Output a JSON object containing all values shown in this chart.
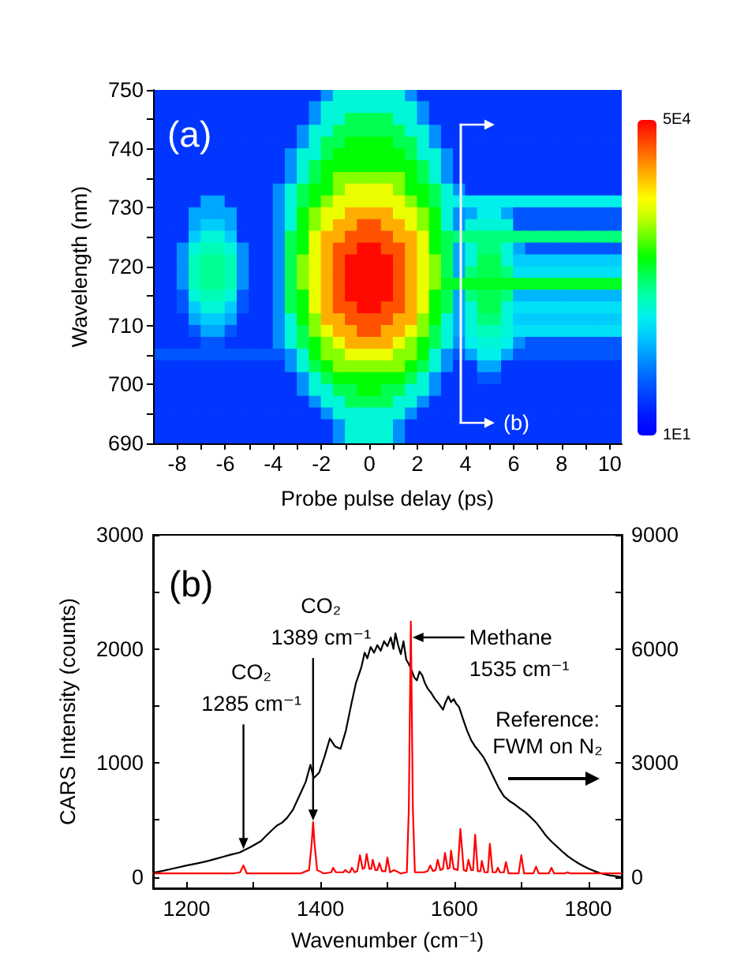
{
  "chart_data": [
    {
      "type": "heatmap",
      "xlabel": "Probe pulse delay (ps)",
      "ylabel": "Wavelength (nm)",
      "x": [
        -8.75,
        -8.25,
        -7.75,
        -7.25,
        -6.75,
        -6.25,
        -5.75,
        -5.25,
        -4.75,
        -4.25,
        -3.75,
        -3.25,
        -2.75,
        -2.25,
        -1.75,
        -1.25,
        -0.75,
        -0.25,
        0.25,
        0.75,
        1.25,
        1.75,
        2.25,
        2.75,
        3.25,
        3.75,
        4.25,
        4.75,
        5.25,
        5.75,
        6.25,
        6.75,
        7.25,
        7.75,
        8.25,
        8.75,
        9.25,
        9.75,
        10.25
      ],
      "cells": [
        [
          5500,
          5500,
          5500,
          5500,
          5500,
          5500,
          5500,
          5500,
          5500,
          5500,
          5500,
          5500,
          5500,
          5500,
          12000,
          20000,
          20000,
          20000,
          20000,
          20000,
          20000,
          12000,
          5500,
          5500,
          5500,
          5500,
          5500,
          5500,
          5500,
          5500,
          5500,
          5500,
          5500,
          5500,
          5500,
          5500,
          5500,
          5500,
          5500
        ],
        [
          5500,
          5500,
          5500,
          5500,
          5500,
          5500,
          5500,
          5500,
          5500,
          5500,
          5500,
          5500,
          5500,
          12000,
          20000,
          20000,
          20000,
          20000,
          20000,
          20000,
          20000,
          20000,
          12000,
          5500,
          5500,
          5500,
          5500,
          5500,
          5500,
          5500,
          5500,
          5500,
          5500,
          5500,
          5500,
          5500,
          5500,
          5500,
          5500
        ],
        [
          5500,
          5500,
          5500,
          5500,
          5500,
          5500,
          5500,
          5500,
          5500,
          5500,
          5500,
          5500,
          5500,
          12000,
          20000,
          20000,
          25500,
          25500,
          25500,
          25500,
          20000,
          20000,
          12000,
          5500,
          5500,
          5500,
          5500,
          5500,
          5500,
          5500,
          5500,
          5500,
          5500,
          5500,
          5500,
          5500,
          5500,
          5500,
          5500
        ],
        [
          5500,
          5500,
          5500,
          5500,
          5500,
          5500,
          5500,
          5500,
          5500,
          5500,
          5500,
          5500,
          12000,
          20000,
          20000,
          25500,
          25500,
          25500,
          25500,
          25500,
          25500,
          20000,
          20000,
          12000,
          5500,
          5500,
          5500,
          5500,
          5500,
          5500,
          5500,
          5500,
          5500,
          5500,
          5500,
          5500,
          5500,
          5500,
          5500
        ],
        [
          5500,
          5500,
          5500,
          5500,
          5500,
          5500,
          5500,
          5500,
          5500,
          5500,
          5500,
          5500,
          12000,
          20000,
          25500,
          25500,
          28000,
          28000,
          28000,
          28000,
          25500,
          25500,
          20000,
          12000,
          5500,
          5500,
          5500,
          5500,
          5500,
          5500,
          5500,
          5500,
          5500,
          5500,
          5500,
          5500,
          5500,
          5500,
          5500
        ],
        [
          5500,
          5500,
          5500,
          5500,
          5500,
          5500,
          5500,
          5500,
          5500,
          5500,
          5500,
          12000,
          20000,
          20000,
          25500,
          28000,
          28000,
          28000,
          28000,
          28000,
          28000,
          25500,
          20000,
          20000,
          12000,
          5500,
          5500,
          5500,
          5500,
          5500,
          5500,
          5500,
          5500,
          5500,
          5500,
          5500,
          5500,
          5500,
          5500
        ],
        [
          5500,
          5500,
          5500,
          5500,
          5500,
          5500,
          5500,
          5500,
          5500,
          5500,
          5500,
          12000,
          20000,
          25500,
          28000,
          28000,
          28000,
          28000,
          28000,
          28000,
          28000,
          28000,
          25500,
          20000,
          12000,
          5500,
          5500,
          5500,
          5500,
          5500,
          5500,
          5500,
          5500,
          5500,
          5500,
          5500,
          5500,
          5500,
          5500
        ],
        [
          5500,
          5500,
          5500,
          5500,
          5500,
          5500,
          5500,
          5500,
          5500,
          5500,
          5500,
          12000,
          20000,
          25500,
          28000,
          32500,
          32500,
          32500,
          32500,
          32500,
          32500,
          28000,
          25500,
          20000,
          12000,
          5500,
          5500,
          5500,
          5500,
          5500,
          5500,
          5500,
          5500,
          5500,
          5500,
          5500,
          5500,
          5500,
          5500
        ],
        [
          5500,
          5500,
          5500,
          5500,
          5500,
          5500,
          5500,
          5500,
          5500,
          5500,
          12000,
          20000,
          25500,
          28000,
          28000,
          32500,
          36500,
          36500,
          36500,
          36500,
          32500,
          28000,
          28000,
          25500,
          20000,
          12000,
          5500,
          5500,
          5500,
          5500,
          5500,
          5500,
          5500,
          5500,
          5500,
          5500,
          5500,
          5500,
          5500
        ],
        [
          5500,
          5500,
          5500,
          5500,
          13500,
          13500,
          5500,
          5500,
          5500,
          5500,
          12000,
          20000,
          25500,
          28000,
          32500,
          36500,
          36500,
          36500,
          36500,
          36500,
          36500,
          32500,
          28000,
          25500,
          20000,
          19000,
          19000,
          19000,
          19000,
          19000,
          19000,
          19000,
          19000,
          19000,
          19000,
          19000,
          19000,
          19000,
          19000
        ],
        [
          5500,
          5500,
          5500,
          13500,
          13500,
          13500,
          13500,
          5500,
          5500,
          5500,
          12000,
          20000,
          28000,
          32500,
          36500,
          36500,
          41500,
          41500,
          41500,
          41500,
          36500,
          36500,
          32500,
          28000,
          20000,
          12000,
          13500,
          19000,
          19000,
          13500,
          8000,
          8000,
          8000,
          8000,
          8000,
          8000,
          8000,
          8000,
          8000
        ],
        [
          5500,
          5500,
          5500,
          13500,
          16000,
          16000,
          13500,
          5500,
          5500,
          5500,
          12000,
          20000,
          28000,
          32500,
          36500,
          41500,
          41500,
          46000,
          46000,
          41500,
          41500,
          36500,
          32500,
          28000,
          20000,
          12000,
          20000,
          20000,
          20000,
          20000,
          8000,
          8000,
          8000,
          8000,
          8000,
          8000,
          8000,
          8000,
          8000
        ],
        [
          5500,
          5500,
          5500,
          16000,
          20000,
          20000,
          16000,
          5500,
          5500,
          5500,
          12000,
          25500,
          28000,
          36500,
          41500,
          41500,
          46000,
          46000,
          46000,
          46000,
          41500,
          41500,
          36500,
          28000,
          25500,
          24000,
          24000,
          24000,
          24000,
          24000,
          24000,
          24000,
          24000,
          24000,
          24000,
          24000,
          24000,
          24000,
          24000
        ],
        [
          5500,
          5500,
          12000,
          20000,
          21500,
          21500,
          20000,
          12000,
          5500,
          5500,
          12000,
          25500,
          28000,
          36500,
          41500,
          46000,
          46000,
          49500,
          49500,
          46000,
          46000,
          41500,
          36500,
          28000,
          25500,
          13500,
          20000,
          24000,
          24000,
          20000,
          13500,
          8000,
          8000,
          8000,
          8000,
          8000,
          8000,
          8000,
          8000
        ],
        [
          5500,
          5500,
          12000,
          21500,
          23000,
          23000,
          21500,
          12000,
          5500,
          5500,
          12000,
          25500,
          32500,
          36500,
          41500,
          46000,
          49500,
          49500,
          49500,
          49500,
          46000,
          41500,
          36500,
          32500,
          25500,
          13500,
          20000,
          25500,
          25500,
          20000,
          16000,
          16000,
          16000,
          16000,
          16000,
          16000,
          16000,
          16000,
          16000
        ],
        [
          5500,
          5500,
          12000,
          21500,
          23000,
          23000,
          21500,
          12000,
          5500,
          5500,
          12000,
          25500,
          32500,
          36500,
          41500,
          46000,
          49500,
          49500,
          49500,
          49500,
          46000,
          41500,
          36500,
          32500,
          25500,
          13500,
          24000,
          25500,
          25500,
          24000,
          17500,
          17500,
          17500,
          17500,
          17500,
          17500,
          17500,
          17500,
          17500
        ],
        [
          5500,
          5500,
          12000,
          21500,
          23000,
          23000,
          21500,
          12000,
          5500,
          5500,
          12000,
          25500,
          32500,
          36500,
          41500,
          46000,
          49500,
          49500,
          49500,
          49500,
          46000,
          41500,
          36500,
          32500,
          27000,
          27000,
          27000,
          27000,
          27000,
          27000,
          27000,
          27000,
          27000,
          27000,
          27000,
          27000,
          27000,
          27000,
          27000
        ],
        [
          5500,
          5500,
          8000,
          20000,
          21500,
          21500,
          20000,
          8000,
          5500,
          5500,
          12000,
          25500,
          28000,
          36500,
          41500,
          46000,
          49500,
          49500,
          49500,
          49500,
          46000,
          41500,
          36500,
          28000,
          25500,
          13500,
          24000,
          25500,
          25500,
          24000,
          14500,
          14500,
          14500,
          14500,
          14500,
          14500,
          14500,
          14500,
          14500
        ],
        [
          5500,
          5500,
          8000,
          16000,
          20000,
          20000,
          16000,
          8000,
          5500,
          5500,
          12000,
          25500,
          28000,
          36500,
          41500,
          46000,
          46000,
          49500,
          49500,
          46000,
          46000,
          41500,
          36500,
          28000,
          25500,
          13500,
          20000,
          25500,
          25500,
          20000,
          17500,
          17500,
          17500,
          17500,
          17500,
          17500,
          17500,
          17500,
          17500
        ],
        [
          5500,
          5500,
          5500,
          13500,
          16000,
          16000,
          13500,
          5500,
          5500,
          5500,
          12000,
          20000,
          28000,
          32500,
          41500,
          41500,
          46000,
          46000,
          46000,
          46000,
          41500,
          41500,
          32500,
          28000,
          20000,
          13500,
          20000,
          24000,
          24000,
          20000,
          16000,
          16000,
          16000,
          16000,
          16000,
          16000,
          16000,
          16000,
          16000
        ],
        [
          5500,
          5500,
          5500,
          8000,
          13500,
          13500,
          8000,
          5500,
          5500,
          5500,
          12000,
          20000,
          25500,
          32500,
          36500,
          41500,
          41500,
          46000,
          46000,
          41500,
          41500,
          36500,
          32500,
          25500,
          20000,
          13500,
          20000,
          21500,
          21500,
          20000,
          17500,
          17500,
          17500,
          17500,
          17500,
          17500,
          17500,
          17500,
          17500
        ],
        [
          5500,
          5500,
          5500,
          5500,
          8000,
          8000,
          5500,
          5500,
          5500,
          5500,
          12000,
          20000,
          25500,
          28000,
          32500,
          36500,
          41500,
          41500,
          41500,
          41500,
          36500,
          32500,
          28000,
          25500,
          20000,
          12000,
          19000,
          20000,
          20000,
          19000,
          12000,
          8000,
          8000,
          8000,
          8000,
          8000,
          8000,
          8000,
          8000
        ],
        [
          8000,
          8000,
          8000,
          8000,
          8000,
          8000,
          8000,
          8000,
          8000,
          8000,
          8000,
          12000,
          20000,
          28000,
          32500,
          32500,
          36500,
          36500,
          36500,
          36500,
          32500,
          32500,
          28000,
          20000,
          12000,
          8000,
          13500,
          19000,
          19000,
          13500,
          8000,
          8000,
          8000,
          8000,
          8000,
          8000,
          8000,
          8000,
          8000
        ],
        [
          5500,
          5500,
          5500,
          5500,
          5500,
          5500,
          5500,
          5500,
          5500,
          5500,
          5500,
          12000,
          20000,
          25500,
          28000,
          32500,
          32500,
          32500,
          32500,
          32500,
          32500,
          28000,
          25500,
          20000,
          12000,
          5500,
          5500,
          13500,
          13500,
          5500,
          5500,
          5500,
          5500,
          5500,
          5500,
          5500,
          5500,
          5500,
          5500
        ],
        [
          5500,
          5500,
          5500,
          5500,
          5500,
          5500,
          5500,
          5500,
          5500,
          5500,
          5500,
          5500,
          12000,
          20000,
          25500,
          28000,
          28000,
          28000,
          28000,
          28000,
          28000,
          25500,
          20000,
          12000,
          5500,
          5500,
          5500,
          8000,
          8000,
          5500,
          5500,
          5500,
          5500,
          5500,
          5500,
          5500,
          5500,
          5500,
          5500
        ],
        [
          5500,
          5500,
          5500,
          5500,
          5500,
          5500,
          5500,
          5500,
          5500,
          5500,
          5500,
          5500,
          12000,
          20000,
          20000,
          25500,
          25500,
          28000,
          28000,
          25500,
          25500,
          20000,
          20000,
          12000,
          5500,
          5500,
          5500,
          5500,
          5500,
          5500,
          5500,
          5500,
          5500,
          5500,
          5500,
          5500,
          5500,
          5500,
          5500
        ],
        [
          5500,
          5500,
          5500,
          5500,
          5500,
          5500,
          5500,
          5500,
          5500,
          5500,
          5500,
          5500,
          5500,
          12000,
          20000,
          20000,
          25500,
          25500,
          25500,
          25500,
          20000,
          20000,
          12000,
          5500,
          5500,
          5500,
          5500,
          5500,
          5500,
          5500,
          5500,
          5500,
          5500,
          5500,
          5500,
          5500,
          5500,
          5500,
          5500
        ],
        [
          5500,
          5500,
          5500,
          5500,
          5500,
          5500,
          5500,
          5500,
          5500,
          5500,
          5500,
          5500,
          5500,
          5500,
          12000,
          20000,
          20000,
          20000,
          20000,
          20000,
          20000,
          12000,
          5500,
          5500,
          5500,
          5500,
          5500,
          5500,
          5500,
          5500,
          5500,
          5500,
          5500,
          5500,
          5500,
          5500,
          5500,
          5500,
          5500
        ],
        [
          5500,
          5500,
          5500,
          5500,
          5500,
          5500,
          5500,
          5500,
          5500,
          5500,
          5500,
          5500,
          5500,
          5500,
          5500,
          12000,
          20000,
          20000,
          20000,
          20000,
          12000,
          5500,
          5500,
          5500,
          5500,
          5500,
          5500,
          5500,
          5500,
          5500,
          5500,
          5500,
          5500,
          5500,
          5500,
          5500,
          5500,
          5500,
          5500
        ],
        [
          5500,
          5500,
          5500,
          5500,
          5500,
          5500,
          5500,
          5500,
          5500,
          5500,
          5500,
          5500,
          5500,
          5500,
          5500,
          12000,
          20000,
          20000,
          20000,
          20000,
          12000,
          5500,
          5500,
          5500,
          5500,
          5500,
          5500,
          5500,
          5500,
          5500,
          5500,
          5500,
          5500,
          5500,
          5500,
          5500,
          5500,
          5500,
          5500
        ]
      ],
      "xlim": [
        -9,
        10.5
      ],
      "ylim": [
        690,
        750
      ],
      "xticks": [
        -8,
        {
          "value": -7,
          "label": null
        },
        -6,
        {
          "value": -5,
          "label": null
        },
        -4,
        {
          "value": -3,
          "label": null
        },
        -2,
        {
          "value": -1,
          "label": null
        },
        0,
        {
          "value": 1,
          "label": null
        },
        2,
        {
          "value": 3,
          "label": null
        },
        4,
        {
          "value": 5,
          "label": null
        },
        6,
        {
          "value": 7,
          "label": null
        },
        8,
        {
          "value": 9,
          "label": null
        },
        10
      ],
      "yticks": [
        690,
        {
          "value": 695,
          "label": null
        },
        700,
        {
          "value": 705,
          "label": null
        },
        710,
        {
          "value": 715,
          "label": null
        },
        720,
        {
          "value": 725,
          "label": null
        },
        730,
        {
          "value": 735,
          "label": null
        },
        740,
        {
          "value": 745,
          "label": null
        },
        750
      ],
      "clim": [
        10,
        50000
      ],
      "cticks": [
        {
          "value": 10,
          "label": "1E1"
        },
        {
          "value": 50000,
          "label": "5E4"
        }
      ],
      "ref_lines": [
        {
          "axis": "x",
          "value": 3.8,
          "label": "(b)",
          "color": "#ffffff"
        }
      ],
      "annotations": [
        "(a)"
      ]
    },
    {
      "type": "line",
      "xlabel": "Wavenumber (cm⁻¹)",
      "ylabel": "CARS Intensity (counts)",
      "xlim": [
        1150,
        1850
      ],
      "ylim": [
        -100,
        3000
      ],
      "y2lim": [
        -300,
        9000
      ],
      "xticks": [
        1200,
        {
          "value": 1300,
          "label": null
        },
        1400,
        {
          "value": 1500,
          "label": null
        },
        1600,
        {
          "value": 1700,
          "label": null
        },
        1800
      ],
      "yticks": [
        0,
        {
          "value": 500,
          "label": null
        },
        1000,
        {
          "value": 1500,
          "label": null
        },
        2000,
        {
          "value": 2500,
          "label": null
        },
        3000
      ],
      "y2ticks": [
        0,
        {
          "value": 1500,
          "label": null
        },
        3000,
        {
          "value": 4500,
          "label": null
        },
        6000,
        {
          "value": 7500,
          "label": null
        },
        9000
      ],
      "series": [
        {
          "color": "#000000",
          "axis": "y2",
          "x": [
            1150,
            1165,
            1180,
            1200,
            1215,
            1232,
            1245,
            1255,
            1265,
            1279,
            1295,
            1311,
            1320,
            1327,
            1335,
            1343,
            1350,
            1359,
            1370,
            1378,
            1385,
            1390,
            1398,
            1406,
            1414,
            1422,
            1430,
            1438,
            1446,
            1453,
            1461,
            1466,
            1470,
            1475,
            1480,
            1485,
            1490,
            1495,
            1500,
            1505,
            1509,
            1512,
            1516,
            1520,
            1524,
            1528,
            1532,
            1536,
            1540,
            1544,
            1548,
            1552,
            1556,
            1560,
            1565,
            1571,
            1577,
            1583,
            1587,
            1591,
            1595,
            1599,
            1603,
            1607,
            1613,
            1619,
            1625,
            1631,
            1637,
            1643,
            1651,
            1659,
            1666,
            1674,
            1682,
            1690,
            1698,
            1706,
            1714,
            1722,
            1730,
            1737,
            1745,
            1753,
            1761,
            1769,
            1777,
            1785,
            1792,
            1800,
            1808,
            1816,
            1824,
            1832,
            1840,
            1849
          ],
          "values": [
            110,
            160,
            220,
            300,
            350,
            420,
            480,
            530,
            580,
            640,
            780,
            940,
            1100,
            1220,
            1350,
            1430,
            1550,
            1770,
            2190,
            2500,
            2950,
            2600,
            2740,
            3160,
            3640,
            3430,
            3370,
            3850,
            4540,
            5100,
            5510,
            5900,
            5750,
            6050,
            5900,
            6100,
            5950,
            6200,
            6070,
            6300,
            6000,
            6410,
            6100,
            5860,
            6200,
            5720,
            5600,
            5440,
            5250,
            5170,
            5400,
            5300,
            5100,
            4960,
            4850,
            4680,
            4550,
            4400,
            4600,
            4750,
            4600,
            4680,
            4550,
            4470,
            4150,
            3850,
            3600,
            3430,
            3300,
            3160,
            2900,
            2600,
            2350,
            2120,
            2000,
            1910,
            1800,
            1700,
            1570,
            1430,
            1250,
            1080,
            930,
            800,
            670,
            550,
            450,
            360,
            290,
            220,
            160,
            110,
            70,
            40,
            20,
            0
          ]
        },
        {
          "color": "#ff0000",
          "x": [
            1150,
            1200,
            1270,
            1280,
            1285,
            1290,
            1370,
            1383,
            1387,
            1389,
            1391,
            1395,
            1405,
            1416,
            1419,
            1423,
            1434,
            1437,
            1441,
            1444,
            1447,
            1451,
            1455,
            1459,
            1463,
            1466,
            1469,
            1473,
            1476,
            1478,
            1482,
            1485,
            1488,
            1492,
            1497,
            1500,
            1504,
            1510,
            1520,
            1529,
            1532,
            1535,
            1538,
            1541,
            1555,
            1560,
            1564,
            1568,
            1572,
            1575,
            1579,
            1583,
            1586,
            1590,
            1593,
            1595,
            1599,
            1605,
            1609,
            1614,
            1618,
            1621,
            1625,
            1628,
            1631,
            1635,
            1639,
            1641,
            1645,
            1650,
            1653,
            1657,
            1662,
            1665,
            1668,
            1674,
            1677,
            1681,
            1696,
            1700,
            1704,
            1718,
            1722,
            1726,
            1741,
            1745,
            1749,
            1765,
            1769,
            1773,
            1850
          ],
          "values": [
            30,
            30,
            30,
            40,
            100,
            30,
            30,
            60,
            300,
            480,
            300,
            60,
            30,
            40,
            80,
            40,
            40,
            60,
            40,
            40,
            80,
            40,
            50,
            190,
            70,
            80,
            200,
            70,
            70,
            150,
            60,
            60,
            120,
            50,
            50,
            170,
            40,
            60,
            30,
            40,
            600,
            2240,
            600,
            40,
            40,
            50,
            100,
            50,
            60,
            150,
            60,
            70,
            210,
            70,
            80,
            230,
            70,
            60,
            420,
            60,
            50,
            150,
            60,
            60,
            370,
            50,
            50,
            140,
            40,
            40,
            290,
            40,
            40,
            80,
            40,
            40,
            130,
            30,
            30,
            190,
            30,
            30,
            90,
            30,
            30,
            80,
            30,
            30,
            40,
            30,
            30
          ]
        }
      ],
      "annotations": [
        "(b)",
        {
          "text": "CO₂\n1285 cm⁻¹",
          "x": 1285,
          "y": 230
        },
        {
          "text": "CO₂\n1389 cm⁻¹",
          "x": 1389,
          "y": 480
        },
        {
          "text": "Methane\n1535 cm⁻¹",
          "x": 1535,
          "y": 2100
        },
        "Reference:\nFWM on N₂"
      ]
    }
  ]
}
